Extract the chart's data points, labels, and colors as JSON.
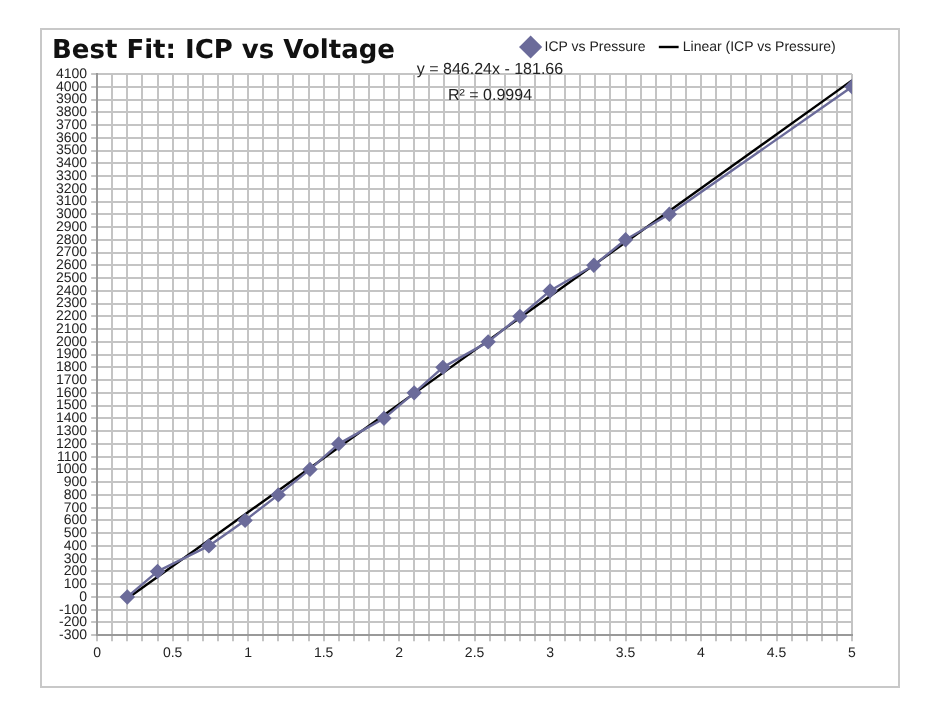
{
  "chart_data": {
    "type": "line",
    "title": "Best Fit: ICP vs Voltage",
    "annotations": [
      "y = 846.24x - 181.66",
      "R² = 0.9994"
    ],
    "x": [
      0.2,
      0.4,
      0.74,
      0.98,
      1.2,
      1.41,
      1.6,
      1.9,
      2.1,
      2.29,
      2.59,
      2.8,
      3.0,
      3.29,
      3.5,
      3.79,
      5.0
    ],
    "series": [
      {
        "name": "ICP vs Pressure",
        "color": "#6b6b9a",
        "marker": "diamond",
        "values": [
          0,
          200,
          400,
          600,
          800,
          1000,
          1200,
          1400,
          1600,
          1800,
          2000,
          2200,
          2400,
          2600,
          2800,
          3000,
          4000
        ]
      },
      {
        "name": "Linear (ICP vs Pressure)",
        "type": "line",
        "color": "#000000",
        "marker": "none",
        "x": [
          0.2,
          5.0
        ],
        "values": [
          -12,
          4050
        ]
      }
    ],
    "xlim": [
      0,
      5
    ],
    "ylim": [
      -300,
      4100
    ],
    "xticks": [
      0,
      {
        "value": 0.1,
        "label": null
      },
      {
        "value": 0.2,
        "label": null
      },
      {
        "value": 0.3,
        "label": null
      },
      {
        "value": 0.4,
        "label": null
      },
      0.5,
      {
        "value": 0.6,
        "label": null
      },
      {
        "value": 0.7,
        "label": null
      },
      {
        "value": 0.8,
        "label": null
      },
      {
        "value": 0.9,
        "label": null
      },
      1,
      {
        "value": 1.1,
        "label": null
      },
      {
        "value": 1.2,
        "label": null
      },
      {
        "value": 1.3,
        "label": null
      },
      {
        "value": 1.4,
        "label": null
      },
      1.5,
      {
        "value": 1.6,
        "label": null
      },
      {
        "value": 1.7,
        "label": null
      },
      {
        "value": 1.8,
        "label": null
      },
      {
        "value": 1.9,
        "label": null
      },
      2,
      {
        "value": 2.1,
        "label": null
      },
      {
        "value": 2.2,
        "label": null
      },
      {
        "value": 2.3,
        "label": null
      },
      {
        "value": 2.4,
        "label": null
      },
      2.5,
      {
        "value": 2.6,
        "label": null
      },
      {
        "value": 2.7,
        "label": null
      },
      {
        "value": 2.8,
        "label": null
      },
      {
        "value": 2.9,
        "label": null
      },
      3,
      {
        "value": 3.1,
        "label": null
      },
      {
        "value": 3.2,
        "label": null
      },
      {
        "value": 3.3,
        "label": null
      },
      {
        "value": 3.4,
        "label": null
      },
      3.5,
      {
        "value": 3.6,
        "label": null
      },
      {
        "value": 3.7,
        "label": null
      },
      {
        "value": 3.8,
        "label": null
      },
      {
        "value": 3.9,
        "label": null
      },
      4,
      {
        "value": 4.1,
        "label": null
      },
      {
        "value": 4.2,
        "label": null
      },
      {
        "value": 4.3,
        "label": null
      },
      {
        "value": 4.4,
        "label": null
      },
      4.5,
      {
        "value": 4.6,
        "label": null
      },
      {
        "value": 4.7,
        "label": null
      },
      {
        "value": 4.8,
        "label": null
      },
      {
        "value": 4.9,
        "label": null
      },
      5
    ],
    "yticks": [
      -300,
      -200,
      -100,
      0,
      100,
      200,
      300,
      400,
      500,
      600,
      700,
      800,
      900,
      1000,
      1100,
      1200,
      1300,
      1400,
      1500,
      1600,
      1700,
      1800,
      1900,
      2000,
      2100,
      2200,
      2300,
      2400,
      2500,
      2600,
      2700,
      2800,
      2900,
      3000,
      3100,
      3200,
      3300,
      3400,
      3500,
      3600,
      3700,
      3800,
      3900,
      4000,
      4100
    ],
    "grid": true,
    "legend": "top right",
    "line_style": "solid"
  }
}
